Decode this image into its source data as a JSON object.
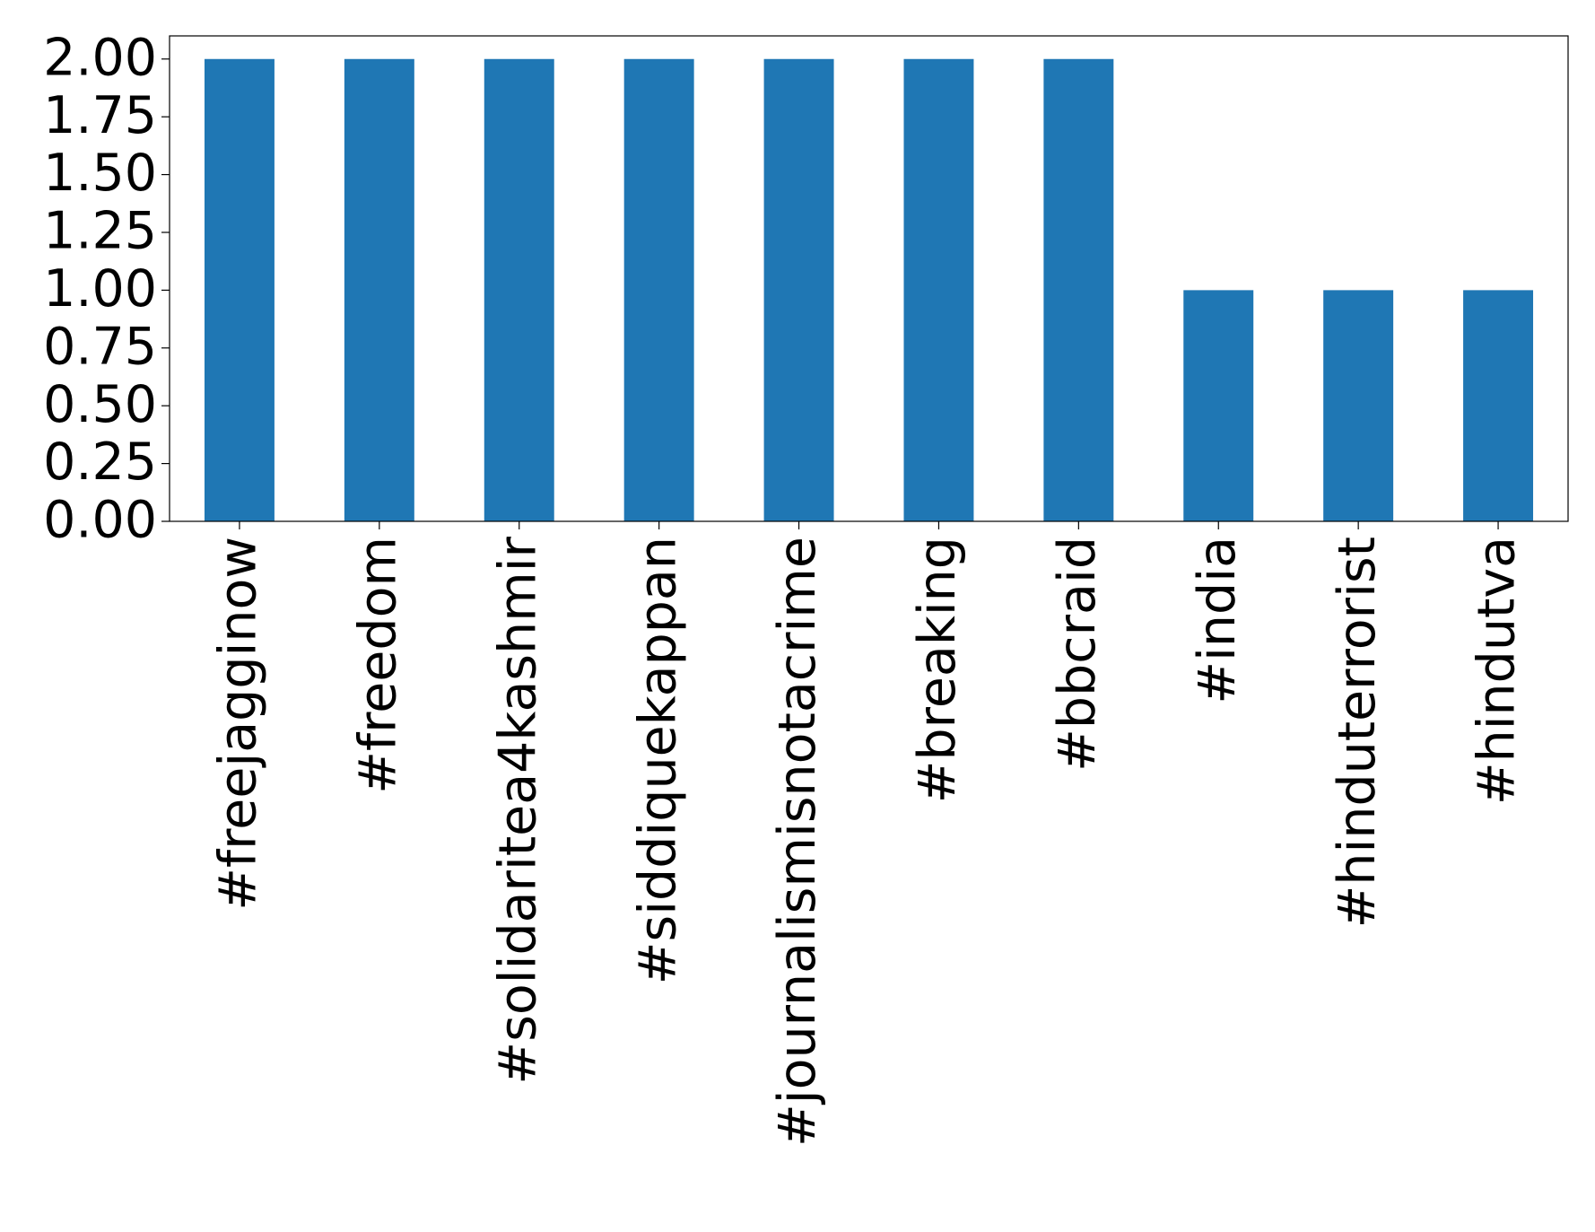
{
  "chart_data": {
    "type": "bar",
    "categories": [
      "#freejagginow",
      "#freedom",
      "#solidaritea4kashmir",
      "#siddiquekappan",
      "#journalismisnotacrime",
      "#breaking",
      "#bbcraid",
      "#india",
      "#hinduterrorist",
      "#hindutva"
    ],
    "values": [
      2,
      2,
      2,
      2,
      2,
      2,
      2,
      1,
      1,
      1
    ],
    "color": "#1f77b4",
    "ylim": [
      0,
      2.1
    ],
    "yticks": [
      {
        "value": 0,
        "label": "0.00"
      },
      {
        "value": 0.25,
        "label": "0.25"
      },
      {
        "value": 0.5,
        "label": "0.50"
      },
      {
        "value": 0.75,
        "label": "0.75"
      },
      {
        "value": 1,
        "label": "1.00"
      },
      {
        "value": 1.25,
        "label": "1.25"
      },
      {
        "value": 1.5,
        "label": "1.50"
      },
      {
        "value": 1.75,
        "label": "1.75"
      },
      {
        "value": 2,
        "label": "2.00"
      }
    ],
    "grid": false
  }
}
